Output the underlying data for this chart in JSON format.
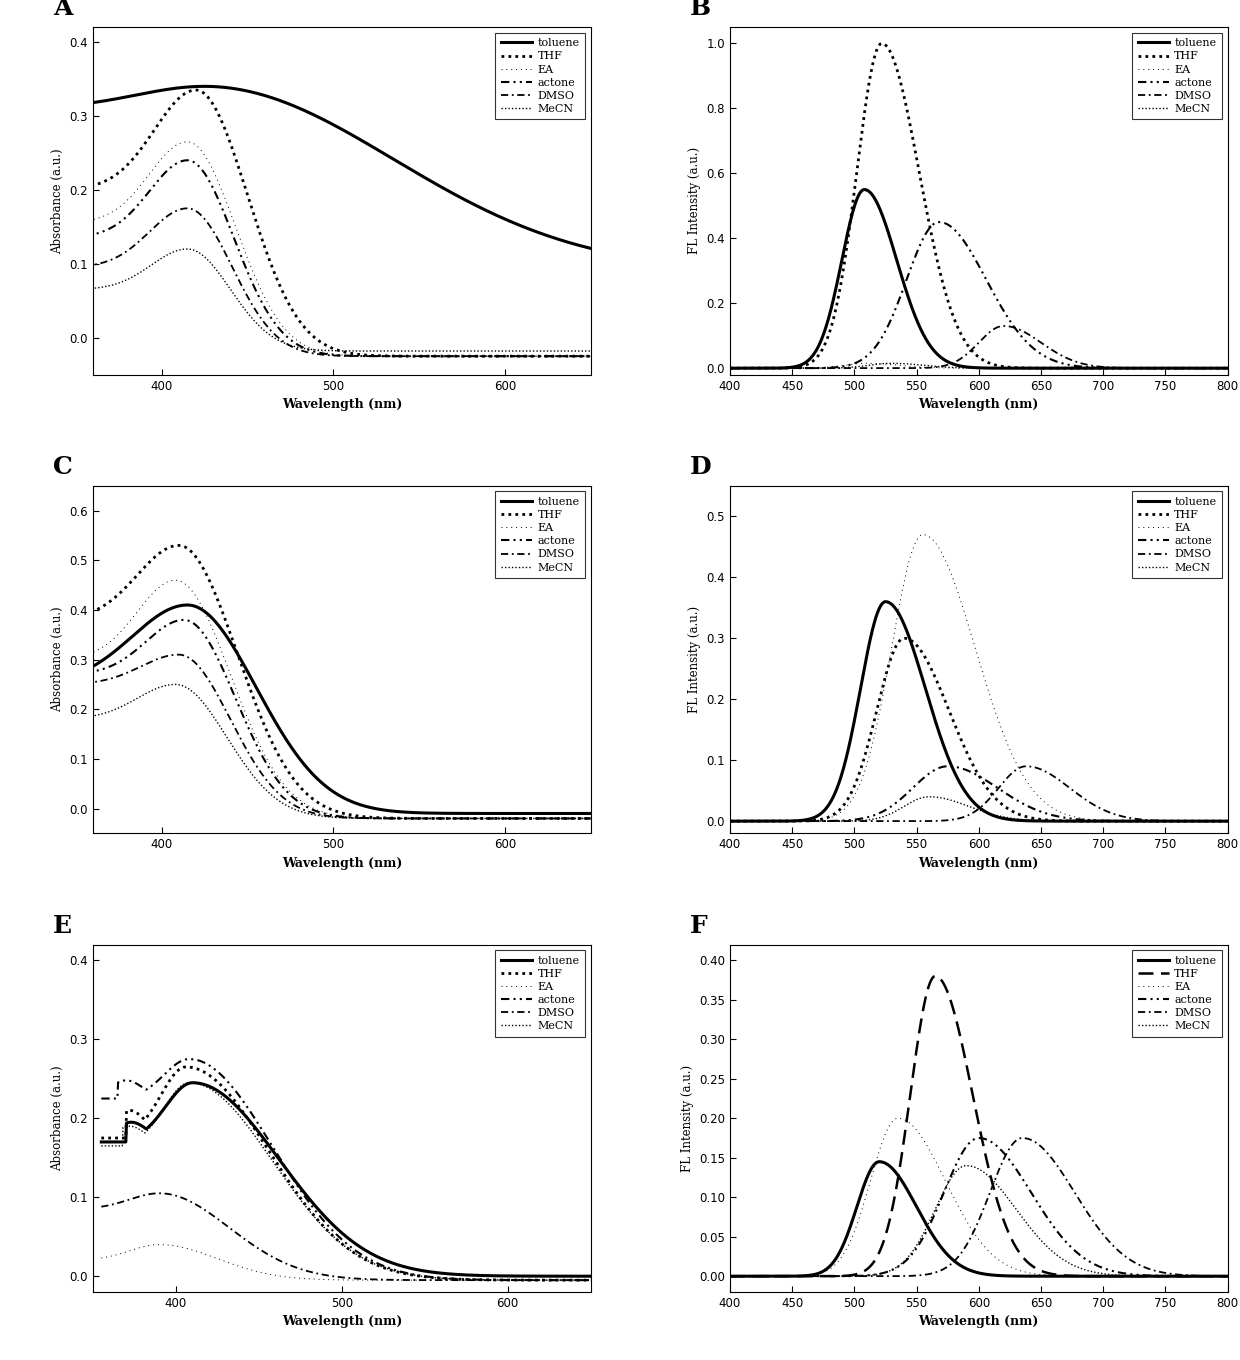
{
  "solvents": [
    "toluene",
    "THF",
    "EA",
    "actone",
    "DMSO",
    "MeCN"
  ],
  "abs_xlabel": "Wavelength (nm)",
  "fl_xlabel": "Wavelength (nm)",
  "abs_ylabel": "Absorbance (a.u.)",
  "fl_ylabel": "FL Intensity (a.u.)",
  "A_xlim": [
    360,
    650
  ],
  "A_ylim": [
    -0.05,
    0.42
  ],
  "A_yticks": [
    0.0,
    0.1,
    0.2,
    0.3,
    0.4
  ],
  "A_xticks": [
    400,
    500,
    600
  ],
  "B_xlim": [
    400,
    800
  ],
  "B_ylim": [
    -0.02,
    1.05
  ],
  "B_xticks": [
    400,
    450,
    500,
    550,
    600,
    650,
    700,
    750,
    800
  ],
  "C_xlim": [
    360,
    650
  ],
  "C_ylim": [
    -0.05,
    0.65
  ],
  "C_yticks": [
    0.0,
    0.1,
    0.2,
    0.3,
    0.4,
    0.5,
    0.6
  ],
  "C_xticks": [
    400,
    500,
    600
  ],
  "D_xlim": [
    400,
    800
  ],
  "D_ylim": [
    -0.02,
    0.55
  ],
  "D_xticks": [
    400,
    450,
    500,
    550,
    600,
    650,
    700,
    750,
    800
  ],
  "E_xlim": [
    350,
    650
  ],
  "E_ylim": [
    -0.02,
    0.42
  ],
  "E_yticks": [
    0.0,
    0.1,
    0.2,
    0.3,
    0.4
  ],
  "E_xticks": [
    400,
    500,
    600
  ],
  "F_xlim": [
    400,
    800
  ],
  "F_ylim": [
    -0.02,
    0.42
  ],
  "F_xticks": [
    400,
    450,
    500,
    550,
    600,
    650,
    700,
    750,
    800
  ],
  "bg_color": "#f0f0f0"
}
